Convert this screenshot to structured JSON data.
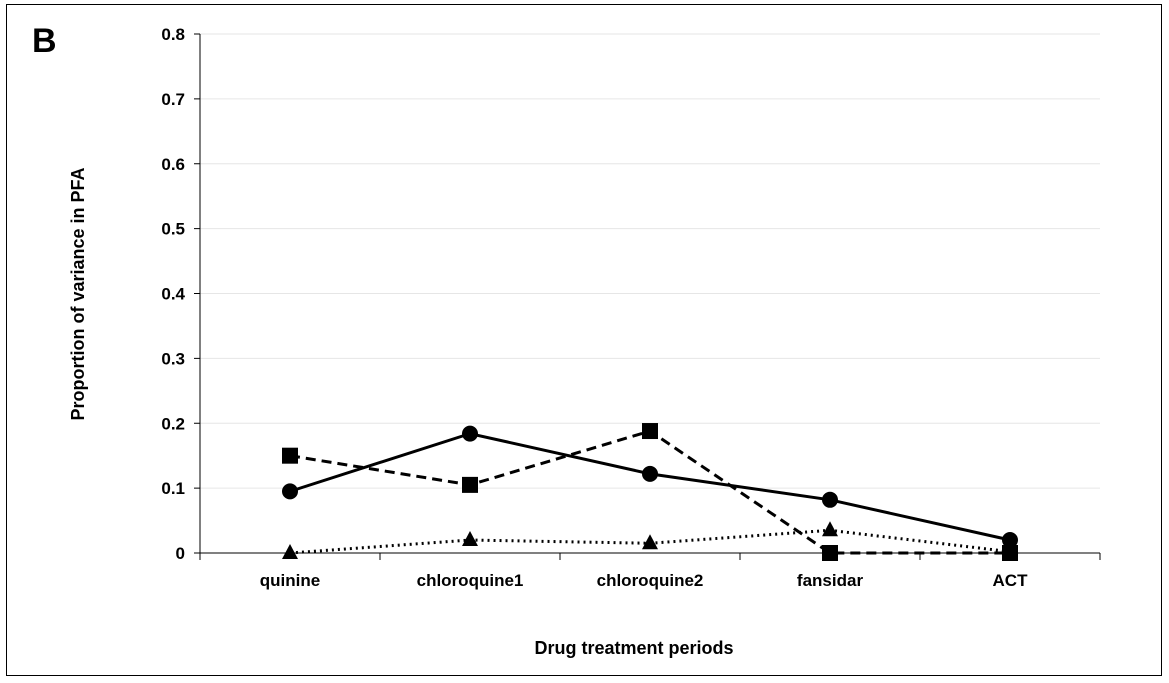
{
  "panel_label": "B",
  "chart_data": {
    "type": "line",
    "categories": [
      "quinine",
      "chloroquine1",
      "chloroquine2",
      "fansidar",
      "ACT"
    ],
    "series": [
      {
        "marker": "circle",
        "line_style": "solid",
        "color": "#000000",
        "values": [
          0.095,
          0.184,
          0.122,
          0.082,
          0.02
        ]
      },
      {
        "marker": "square",
        "line_style": "dashed",
        "color": "#000000",
        "values": [
          0.15,
          0.105,
          0.188,
          0.0,
          0.0
        ]
      },
      {
        "marker": "triangle",
        "line_style": "dotted",
        "color": "#000000",
        "values": [
          0.0,
          0.02,
          0.015,
          0.035,
          0.002
        ]
      }
    ],
    "xlabel": "Drug treatment periods",
    "ylabel": "Proportion of variance in PFA",
    "ylim": [
      0,
      0.8
    ],
    "yticks": [
      "0",
      "0.1",
      "0.2",
      "0.3",
      "0.4",
      "0.5",
      "0.6",
      "0.7",
      "0.8"
    ],
    "grid": true,
    "legend": "none"
  }
}
